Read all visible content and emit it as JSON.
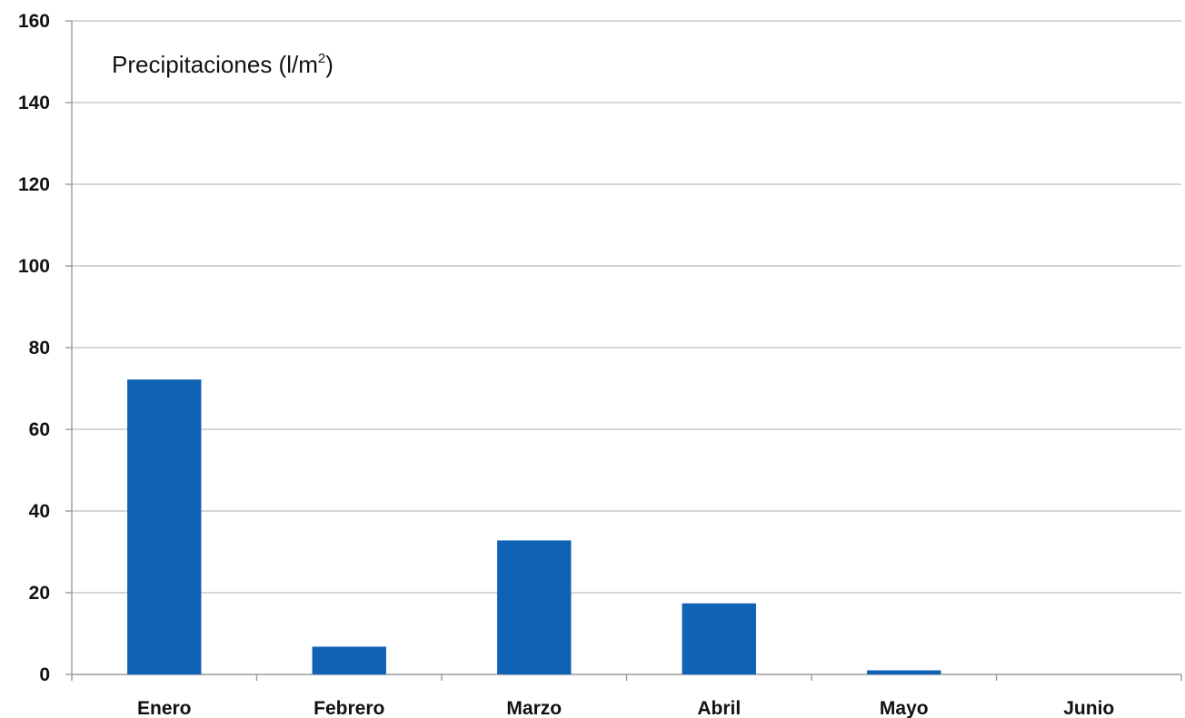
{
  "chart_data": {
    "type": "bar",
    "title": "Precipitaciones (l/m²)",
    "title_parts": {
      "main": "Precipitaciones (l/m",
      "superscript": "2",
      "end": ")"
    },
    "xlabel": "",
    "ylabel": "",
    "categories": [
      "Enero",
      "Febrero",
      "Marzo",
      "Abril",
      "Mayo",
      "Junio"
    ],
    "values": [
      72.2,
      6.8,
      32.8,
      17.4,
      1.0,
      0
    ],
    "ylim": [
      0,
      160
    ],
    "yticks": [
      0,
      20,
      40,
      60,
      80,
      100,
      120,
      140,
      160
    ],
    "ytick_labels": [
      "0",
      "20",
      "40",
      "60",
      "80",
      "100",
      "120",
      "140",
      "160"
    ],
    "grid": true,
    "legend": "none",
    "bar_color": "#0f62b4",
    "grid_color": "#c8c8c8",
    "axis_color": "#9a9a9a"
  }
}
